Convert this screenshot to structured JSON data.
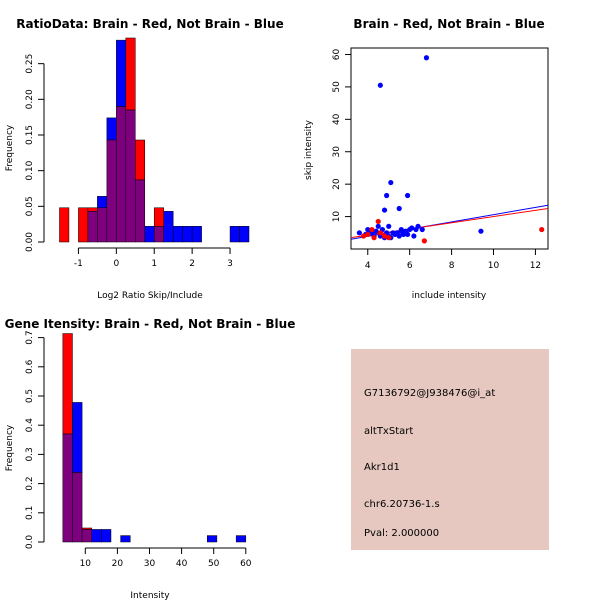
{
  "colors": {
    "red": "#ff0000",
    "blue": "#0000ff",
    "overlap": "#7f007f",
    "info_bg": "#e6c8c0",
    "pval": "#aa0000"
  },
  "chart_data": [
    {
      "type": "bar",
      "title": "RatioData: Brain - Red, Not Brain - Blue",
      "xlabel": "Log2 Ratio Skip/Include",
      "ylabel": "Frequency",
      "xlim": [
        -1.75,
        3.5
      ],
      "ylim": [
        0,
        0.3
      ],
      "xticks": [
        "-1",
        "0",
        "1",
        "2",
        "3"
      ],
      "xtick_values": [
        -1,
        0,
        1,
        2,
        3
      ],
      "yticks": [
        "0.00",
        "0.05",
        "0.10",
        "0.15",
        "0.20",
        "0.25"
      ],
      "ytick_values": [
        0,
        0.05,
        0.1,
        0.15,
        0.2,
        0.25
      ],
      "bin_width": 0.25,
      "bin_starts": [
        -1.5,
        -1.0,
        -0.75,
        -0.5,
        -0.25,
        0.0,
        0.25,
        0.5,
        0.75,
        1.0,
        1.25,
        1.5,
        1.75,
        2.0,
        2.25,
        2.5,
        2.75,
        3.0,
        3.25
      ],
      "series": [
        {
          "name": "Brain",
          "color": "red",
          "values": [
            0.048,
            0.048,
            0.048,
            0.048,
            0.143,
            0.19,
            0.286,
            0.143,
            0.0,
            0.048,
            0.0,
            0.0,
            0.0,
            0.0,
            0,
            0,
            0,
            0,
            0
          ]
        },
        {
          "name": "Not Brain",
          "color": "blue",
          "values": [
            0.0,
            0.0,
            0.043,
            0.064,
            0.174,
            0.283,
            0.185,
            0.087,
            0.022,
            0.022,
            0.043,
            0.022,
            0.022,
            0.022,
            0,
            0,
            0,
            0.022,
            0.022
          ]
        }
      ]
    },
    {
      "type": "scatter",
      "title": "Brain - Red, Not Brain - Blue",
      "xlabel": "include intensity",
      "ylabel": "skip intensity",
      "xlim": [
        3.2,
        12.6
      ],
      "ylim": [
        0,
        62
      ],
      "xticks": [
        "4",
        "6",
        "8",
        "10",
        "12"
      ],
      "xtick_values": [
        4,
        6,
        8,
        10,
        12
      ],
      "yticks": [
        "10",
        "20",
        "30",
        "40",
        "50",
        "60"
      ],
      "ytick_values": [
        10,
        20,
        30,
        40,
        50,
        60
      ],
      "series": [
        {
          "name": "Not Brain",
          "color": "blue",
          "points": [
            [
              6.8,
              59
            ],
            [
              4.6,
              50.5
            ],
            [
              5.1,
              20.5
            ],
            [
              5.9,
              16.5
            ],
            [
              4.9,
              16.5
            ],
            [
              5.5,
              12.5
            ],
            [
              4.8,
              12
            ],
            [
              4.5,
              7
            ],
            [
              5.0,
              7
            ],
            [
              9.4,
              5.5
            ],
            [
              5.2,
              5
            ],
            [
              5.6,
              5.5
            ],
            [
              3.6,
              5
            ],
            [
              3.9,
              4.5
            ],
            [
              4.0,
              6
            ],
            [
              4.2,
              5
            ],
            [
              4.3,
              4
            ],
            [
              4.6,
              4
            ],
            [
              4.7,
              6
            ],
            [
              4.8,
              3.5
            ],
            [
              4.9,
              5
            ],
            [
              5.0,
              4
            ],
            [
              5.1,
              3.5
            ],
            [
              5.3,
              4.5
            ],
            [
              5.4,
              5
            ],
            [
              5.5,
              4
            ],
            [
              5.6,
              6
            ],
            [
              5.7,
              4.5
            ],
            [
              5.8,
              5.5
            ],
            [
              6.0,
              6
            ],
            [
              6.1,
              6.5
            ],
            [
              6.2,
              4
            ],
            [
              6.3,
              6
            ],
            [
              6.4,
              7
            ],
            [
              6.6,
              6
            ],
            [
              4.1,
              5.5
            ],
            [
              4.4,
              5.5
            ],
            [
              5.9,
              4.5
            ]
          ]
        },
        {
          "name": "Brain",
          "color": "red",
          "points": [
            [
              12.3,
              6
            ],
            [
              6.7,
              2.5
            ],
            [
              4.5,
              8.5
            ],
            [
              4.0,
              4.5
            ],
            [
              4.2,
              6
            ],
            [
              4.3,
              3.5
            ],
            [
              4.6,
              5
            ],
            [
              4.8,
              4
            ],
            [
              5.0,
              3.5
            ],
            [
              3.8,
              4
            ]
          ]
        }
      ],
      "fit_lines": [
        {
          "color": "blue",
          "x": [
            3.2,
            12.6
          ],
          "y": [
            3.0,
            13.5
          ]
        },
        {
          "color": "red",
          "x": [
            3.2,
            12.6
          ],
          "y": [
            3.5,
            12.5
          ]
        }
      ]
    },
    {
      "type": "bar",
      "title": "Gene Itensity: Brain - Red, Not Brain - Blue",
      "xlabel": "Intensity",
      "ylabel": "Frequency",
      "xlim": [
        -1,
        61
      ],
      "ylim": [
        0,
        0.75
      ],
      "xticks": [
        "10",
        "20",
        "30",
        "40",
        "50",
        "60"
      ],
      "xtick_values": [
        10,
        20,
        30,
        40,
        50,
        60
      ],
      "yticks": [
        "0.0",
        "0.1",
        "0.2",
        "0.3",
        "0.4",
        "0.5",
        "0.6",
        "0.7"
      ],
      "ytick_values": [
        0,
        0.1,
        0.2,
        0.3,
        0.4,
        0.5,
        0.6,
        0.7
      ],
      "bin_width": 3,
      "bin_starts": [
        3,
        6,
        9,
        12,
        15,
        18,
        21,
        48,
        57
      ],
      "series": [
        {
          "name": "Brain",
          "color": "red",
          "values": [
            0.714,
            0.238,
            0.048,
            0.0,
            0.0,
            0.0,
            0.0,
            0.0,
            0.0
          ]
        },
        {
          "name": "Not Brain",
          "color": "blue",
          "values": [
            0.37,
            0.478,
            0.043,
            0.043,
            0.043,
            0.0,
            0.022,
            0.022,
            0.022
          ]
        }
      ]
    }
  ],
  "info_box": {
    "probe": "G7136792@J938476@i_at",
    "event_type": "altTxStart",
    "gene": "Akr1d1",
    "location": "chr6.20736-1.s",
    "pval": "Pval: 2.000000"
  }
}
